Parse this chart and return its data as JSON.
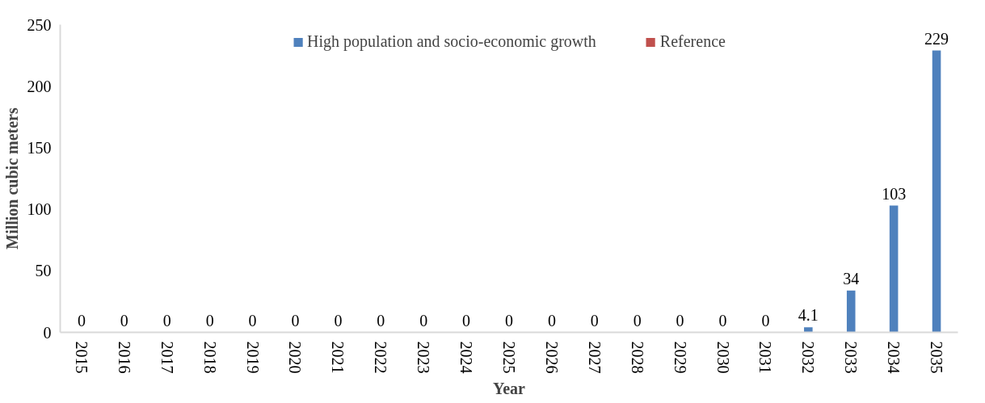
{
  "chart_data": {
    "type": "bar",
    "xlabel": "Year",
    "ylabel": "Million cubic meters",
    "categories": [
      "2015",
      "2016",
      "2017",
      "2018",
      "2019",
      "2020",
      "2021",
      "2022",
      "2023",
      "2024",
      "2025",
      "2026",
      "2027",
      "2028",
      "2029",
      "2030",
      "2031",
      "2032",
      "2033",
      "2034",
      "2035"
    ],
    "series": [
      {
        "name": "High population and socio-economic growth",
        "color": "#4f81bd",
        "values": [
          0,
          0,
          0,
          0,
          0,
          0,
          0,
          0,
          0,
          0,
          0,
          0,
          0,
          0,
          0,
          0,
          0,
          4.1,
          34,
          103,
          229
        ],
        "value_labels": [
          "0",
          "0",
          "0",
          "0",
          "0",
          "0",
          "0",
          "0",
          "0",
          "0",
          "0",
          "0",
          "0",
          "0",
          "0",
          "0",
          "0",
          "4.1",
          "34",
          "103",
          "229"
        ]
      },
      {
        "name": "Reference",
        "color": "#c0504d",
        "values": [
          0,
          0,
          0,
          0,
          0,
          0,
          0,
          0,
          0,
          0,
          0,
          0,
          0,
          0,
          0,
          0,
          0,
          0,
          0,
          0,
          0
        ]
      }
    ],
    "ylim": [
      0,
      250
    ],
    "yticks": [
      0,
      50,
      100,
      150,
      200,
      250
    ],
    "grid": false,
    "legend": "top"
  }
}
